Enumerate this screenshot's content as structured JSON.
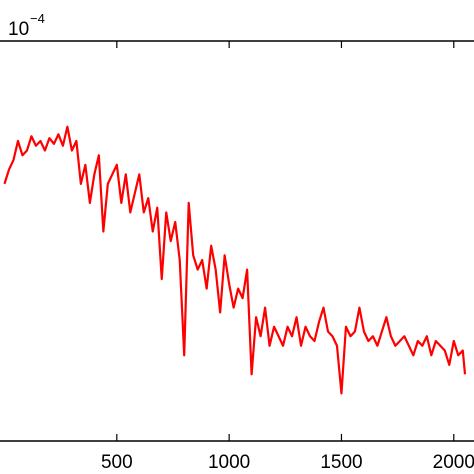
{
  "chart_data": {
    "type": "line",
    "title": "",
    "xlabel": "",
    "ylabel": "",
    "y_exponent_label": {
      "base": "10",
      "exponent": "−4"
    },
    "xlim": [
      -20,
      2090
    ],
    "ylim": [
      -1.6,
      2.6
    ],
    "x_ticks": [
      {
        "value": 500,
        "label": "500"
      },
      {
        "value": 1000,
        "label": "1000"
      },
      {
        "value": 1500,
        "label": "1500"
      },
      {
        "value": 2000,
        "label": "2000"
      }
    ],
    "grid": false,
    "legend": "none",
    "series": [
      {
        "color": "#ff0000",
        "x": [
          0,
          20,
          40,
          60,
          80,
          100,
          120,
          140,
          160,
          180,
          200,
          220,
          240,
          260,
          280,
          300,
          320,
          340,
          360,
          380,
          400,
          420,
          440,
          460,
          480,
          500,
          520,
          540,
          560,
          580,
          600,
          620,
          640,
          660,
          680,
          700,
          720,
          740,
          760,
          780,
          800,
          820,
          840,
          860,
          880,
          900,
          920,
          940,
          960,
          980,
          1000,
          1020,
          1040,
          1060,
          1080,
          1100,
          1120,
          1140,
          1160,
          1180,
          1200,
          1220,
          1240,
          1260,
          1280,
          1300,
          1320,
          1340,
          1360,
          1380,
          1400,
          1420,
          1440,
          1460,
          1480,
          1500,
          1520,
          1540,
          1560,
          1580,
          1600,
          1620,
          1640,
          1660,
          1680,
          1700,
          1720,
          1740,
          1760,
          1780,
          1800,
          1820,
          1840,
          1860,
          1880,
          1900,
          1920,
          1940,
          1960,
          1980,
          2000,
          2020,
          2040,
          2050
        ],
        "values": [
          1.1,
          1.25,
          1.35,
          1.55,
          1.4,
          1.45,
          1.6,
          1.5,
          1.55,
          1.45,
          1.58,
          1.52,
          1.62,
          1.5,
          1.7,
          1.45,
          1.55,
          1.1,
          1.3,
          0.9,
          1.2,
          1.4,
          0.6,
          1.1,
          1.2,
          1.3,
          0.9,
          1.2,
          0.8,
          1.0,
          1.2,
          0.8,
          0.95,
          0.6,
          0.85,
          0.1,
          0.8,
          0.5,
          0.7,
          0.3,
          -0.7,
          0.9,
          0.35,
          0.2,
          0.3,
          0.0,
          0.45,
          0.2,
          -0.25,
          0.35,
          0.05,
          -0.2,
          0.0,
          -0.1,
          0.2,
          -0.9,
          -0.3,
          -0.5,
          -0.2,
          -0.6,
          -0.4,
          -0.5,
          -0.6,
          -0.4,
          -0.5,
          -0.3,
          -0.6,
          -0.4,
          -0.5,
          -0.55,
          -0.35,
          -0.2,
          -0.45,
          -0.5,
          -0.6,
          -1.1,
          -0.4,
          -0.5,
          -0.45,
          -0.2,
          -0.45,
          -0.55,
          -0.5,
          -0.6,
          -0.45,
          -0.3,
          -0.5,
          -0.6,
          -0.55,
          -0.5,
          -0.6,
          -0.7,
          -0.55,
          -0.6,
          -0.5,
          -0.7,
          -0.55,
          -0.6,
          -0.65,
          -0.8,
          -0.55,
          -0.7,
          -0.65,
          -0.9
        ]
      }
    ]
  }
}
